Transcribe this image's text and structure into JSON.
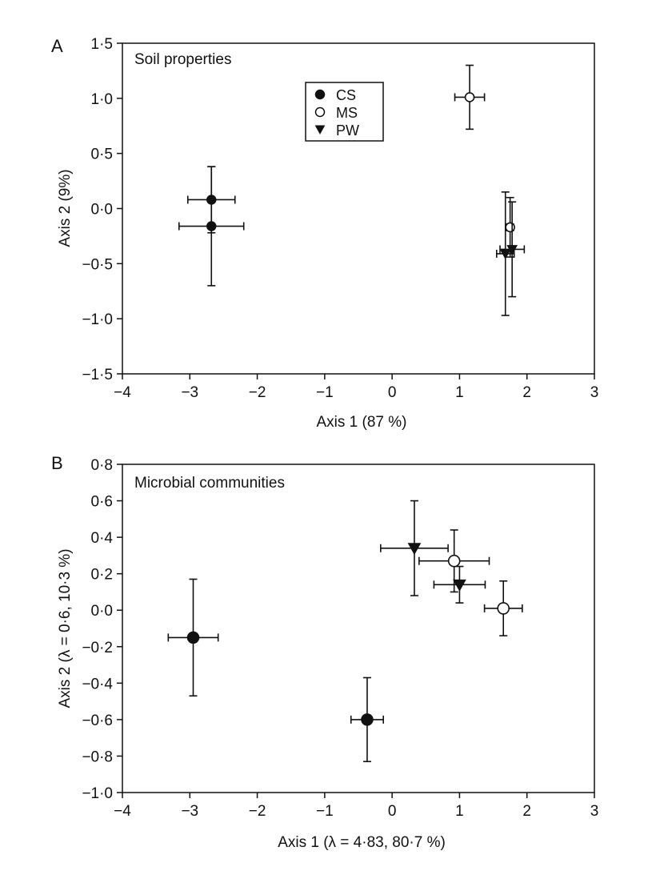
{
  "chart_data": [
    {
      "type": "scatter",
      "panel_letter": "A",
      "title": "Soil properties",
      "xlabel": "Axis 1 (87 %)",
      "ylabel": "Axis 2 (9%)",
      "xlim": [
        -4,
        3
      ],
      "ylim": [
        -1.5,
        1.5
      ],
      "x_ticks": [
        -4,
        -3,
        -2,
        -1,
        0,
        1,
        2,
        3
      ],
      "x_tick_labels": [
        "−4",
        "−3",
        "−2",
        "−1",
        "0",
        "1",
        "2",
        "3"
      ],
      "y_ticks": [
        -1.5,
        -1.0,
        -0.5,
        0.0,
        0.5,
        1.0,
        1.5
      ],
      "y_tick_labels": [
        "−1·5",
        "−1·0",
        "−0·5",
        "0·0",
        "0·5",
        "1·0",
        "1·5"
      ],
      "legend": {
        "position": "top-center",
        "entries": [
          {
            "label": "CS",
            "marker": "filled-circle"
          },
          {
            "label": "MS",
            "marker": "open-circle"
          },
          {
            "label": "PW",
            "marker": "filled-triangle-down"
          }
        ]
      },
      "series": [
        {
          "name": "CS",
          "marker": "filled-circle",
          "points": [
            {
              "x": -2.68,
              "y": 0.08,
              "xerr": 0.35,
              "yerr": 0.3
            },
            {
              "x": -2.68,
              "y": -0.16,
              "xerr": 0.48,
              "yerr": 0.54
            }
          ]
        },
        {
          "name": "MS",
          "marker": "open-circle",
          "points": [
            {
              "x": 1.15,
              "y": 1.01,
              "xerr": 0.22,
              "yerr": 0.29
            },
            {
              "x": 1.75,
              "y": -0.17,
              "xerr": 0.05,
              "yerr": 0.27
            }
          ]
        },
        {
          "name": "PW",
          "marker": "filled-triangle-down",
          "points": [
            {
              "x": 1.68,
              "y": -0.41,
              "xerr": 0.13,
              "yerr": 0.56
            },
            {
              "x": 1.78,
              "y": -0.37,
              "xerr": 0.18,
              "yerr": 0.43
            }
          ]
        }
      ]
    },
    {
      "type": "scatter",
      "panel_letter": "B",
      "title": "Microbial communities",
      "xlabel": "Axis 1 (λ = 4·83, 80·7 %)",
      "ylabel": "Axis 2 (λ = 0·6, 10·3 %)",
      "xlim": [
        -4,
        3
      ],
      "ylim": [
        -1.0,
        0.8
      ],
      "x_ticks": [
        -4,
        -3,
        -2,
        -1,
        0,
        1,
        2,
        3
      ],
      "x_tick_labels": [
        "−4",
        "−3",
        "−2",
        "−1",
        "0",
        "1",
        "2",
        "3"
      ],
      "y_ticks": [
        -1.0,
        -0.8,
        -0.6,
        -0.4,
        -0.2,
        0.0,
        0.2,
        0.4,
        0.6,
        0.8
      ],
      "y_tick_labels": [
        "−1·0",
        "−0·8",
        "−0·6",
        "−0·4",
        "−0·2",
        "0·0",
        "0·2",
        "0·4",
        "0·6",
        "0·8"
      ],
      "series": [
        {
          "name": "CS",
          "marker": "filled-circle",
          "points": [
            {
              "x": -2.95,
              "y": -0.15,
              "xerr": 0.37,
              "yerr": 0.32
            },
            {
              "x": -0.37,
              "y": -0.6,
              "xerr": 0.24,
              "yerr": 0.23
            }
          ]
        },
        {
          "name": "MS",
          "marker": "open-circle",
          "points": [
            {
              "x": 0.92,
              "y": 0.27,
              "xerr": 0.52,
              "yerr": 0.17
            },
            {
              "x": 1.65,
              "y": 0.01,
              "xerr": 0.28,
              "yerr": 0.15
            }
          ]
        },
        {
          "name": "PW",
          "marker": "filled-triangle-down",
          "points": [
            {
              "x": 0.33,
              "y": 0.34,
              "xerr": 0.5,
              "yerr": 0.26
            },
            {
              "x": 1.0,
              "y": 0.14,
              "xerr": 0.38,
              "yerr": 0.1
            }
          ]
        }
      ]
    }
  ]
}
